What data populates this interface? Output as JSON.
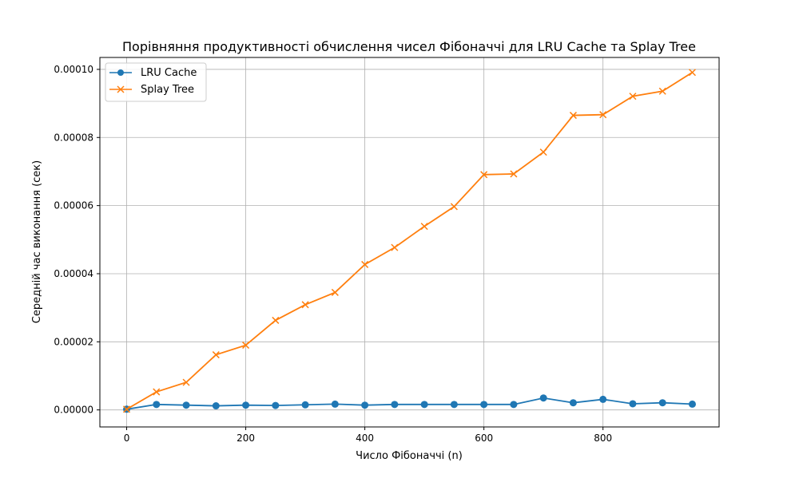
{
  "chart_data": {
    "type": "line",
    "title": "Порівняння продуктивності обчислення чисел Фібоначчі для LRU Cache та Splay Tree",
    "xlabel": "Число Фібоначчі (n)",
    "ylabel": "Середній час виконання (сек)",
    "xlim": [
      -45,
      995
    ],
    "ylim": [
      -5e-06,
      0.0001035
    ],
    "xticks": [
      0,
      200,
      400,
      600,
      800
    ],
    "xtick_labels": [
      "0",
      "200",
      "400",
      "600",
      "800"
    ],
    "yticks": [
      0,
      2e-05,
      4e-05,
      6e-05,
      8e-05,
      0.0001
    ],
    "ytick_labels": [
      "0.00000",
      "0.00002",
      "0.00004",
      "0.00006",
      "0.00008",
      "0.00010"
    ],
    "grid": true,
    "legend_position": "top-left",
    "x": [
      0,
      50,
      100,
      150,
      200,
      250,
      300,
      350,
      400,
      450,
      500,
      550,
      600,
      650,
      700,
      750,
      800,
      850,
      900,
      950
    ],
    "series": [
      {
        "name": "LRU Cache",
        "color": "#1f77b4",
        "marker": "circle",
        "values": [
          2e-07,
          1.6e-06,
          1.4e-06,
          1.2e-06,
          1.4e-06,
          1.3e-06,
          1.5e-06,
          1.7e-06,
          1.4e-06,
          1.6e-06,
          1.6e-06,
          1.6e-06,
          1.6e-06,
          1.6e-06,
          3.5e-06,
          2.1e-06,
          3.1e-06,
          1.8e-06,
          2.1e-06,
          1.7e-06
        ]
      },
      {
        "name": "Splay Tree",
        "color": "#ff7f0e",
        "marker": "x",
        "values": [
          2e-07,
          5.3e-06,
          8.1e-06,
          1.62e-05,
          1.9e-05,
          2.63e-05,
          3.09e-05,
          3.45e-05,
          4.27e-05,
          4.77e-05,
          5.39e-05,
          5.97e-05,
          6.91e-05,
          6.93e-05,
          7.57e-05,
          8.65e-05,
          8.67e-05,
          9.21e-05,
          9.36e-05,
          9.91e-05
        ]
      }
    ]
  }
}
